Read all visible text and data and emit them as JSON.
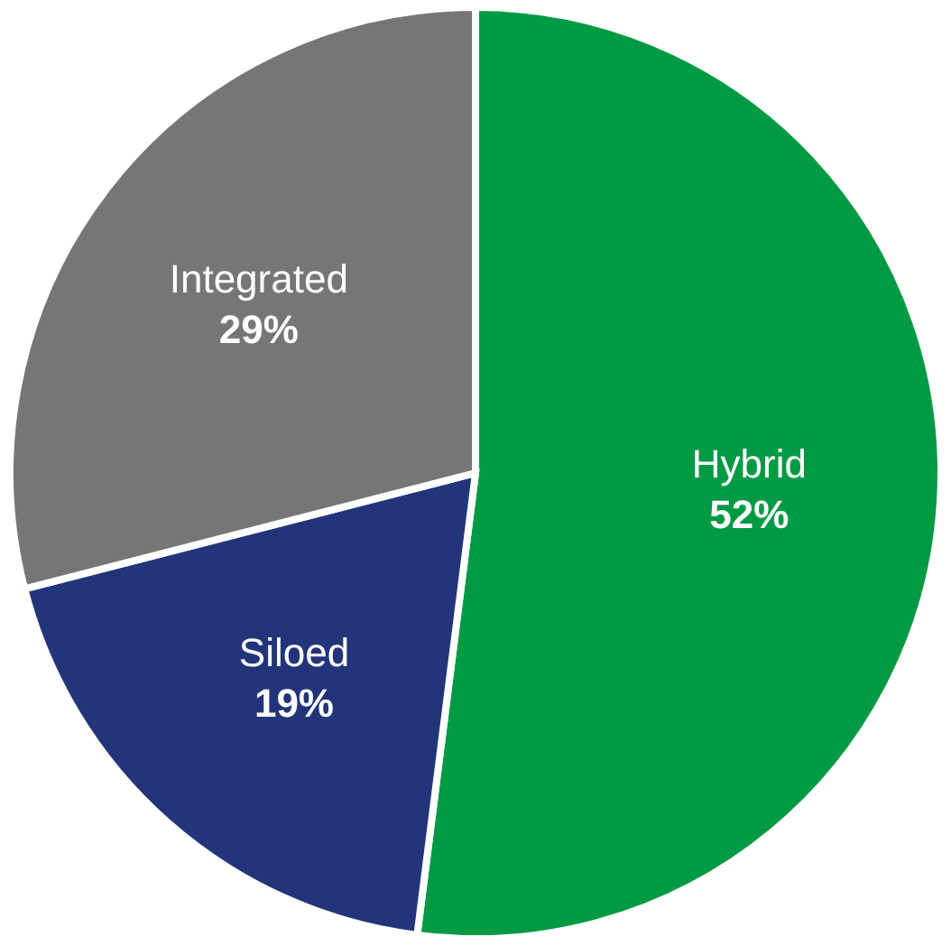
{
  "chart_data": {
    "type": "pie",
    "categories": [
      "Hybrid",
      "Siloed",
      "Integrated"
    ],
    "values": [
      52,
      19,
      29
    ],
    "value_labels": [
      "52%",
      "19%",
      "29%"
    ],
    "colors": [
      "#009a44",
      "#22357a",
      "#767676"
    ],
    "legend": false
  }
}
